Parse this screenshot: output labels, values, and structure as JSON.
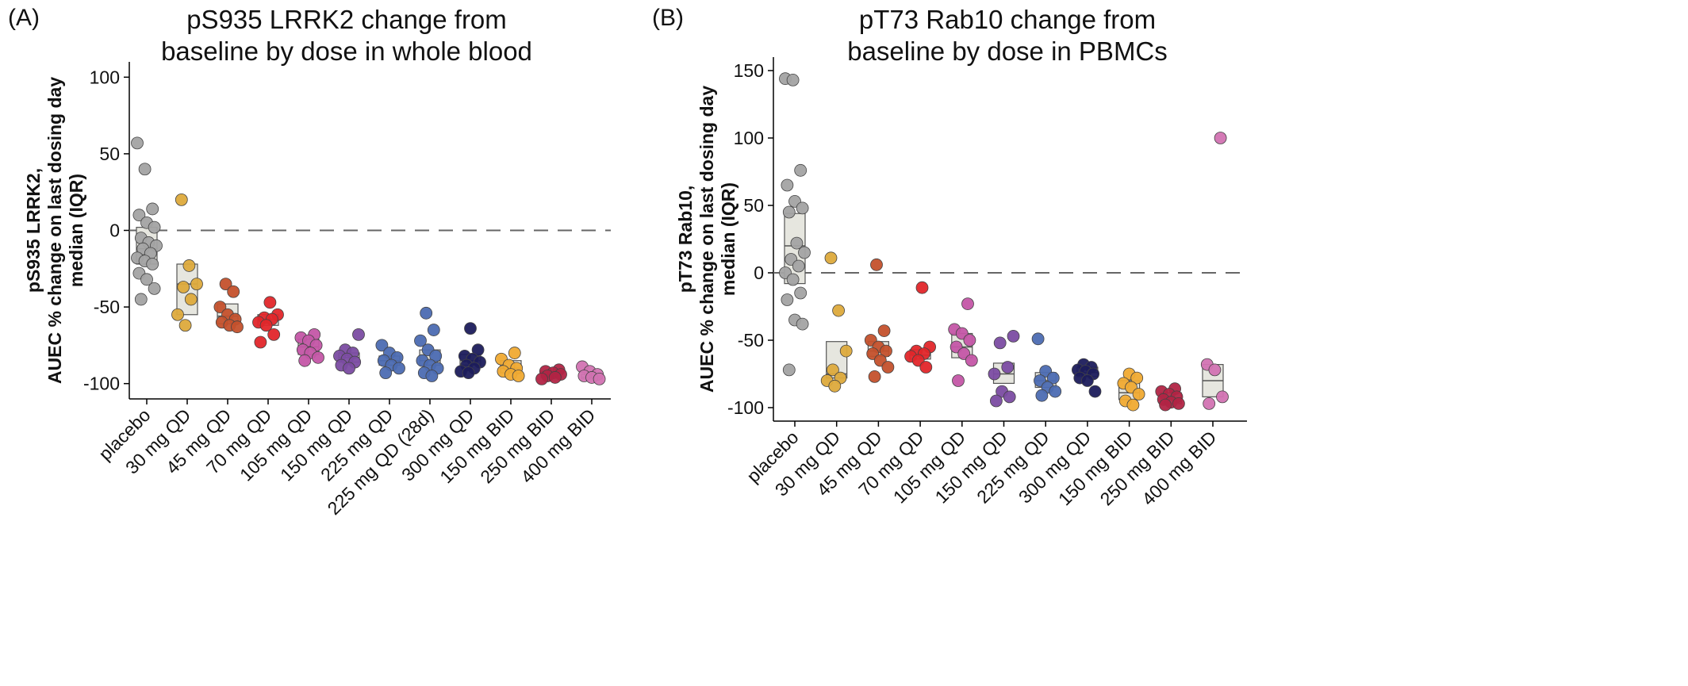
{
  "chart_data": [
    {
      "type": "box",
      "panel_label": "(A)",
      "title": [
        "pS935 LRRK2 change from",
        "baseline by dose in whole blood"
      ],
      "y_label": [
        "pS935 LRRK2,",
        "AUEC % change on last dosing day",
        "median (IQR)"
      ],
      "categories": [
        "placebo",
        "30 mg QD",
        "45 mg QD",
        "70 mg QD",
        "105 mg QD",
        "150 mg QD",
        "225 mg QD",
        "225 mg QD (28d)",
        "300 mg QD",
        "150 mg BID",
        "250 mg BID",
        "400 mg BID"
      ],
      "colors": [
        "#a3a3a3",
        "#ddaa3c",
        "#c4512c",
        "#e2262a",
        "#c456a6",
        "#7b4ca2",
        "#4c6cb2",
        "#4c6cb2",
        "#1c1c5c",
        "#f0aa32",
        "#b22444",
        "#d273b2"
      ],
      "points": [
        [
          57,
          40,
          14,
          10,
          5,
          2,
          -5,
          -8,
          -10,
          -12,
          -15,
          -18,
          -20,
          -22,
          -28,
          -32,
          -38,
          -45
        ],
        [
          20,
          -23,
          -35,
          -37,
          -45,
          -55,
          -62
        ],
        [
          -35,
          -40,
          -50,
          -55,
          -58,
          -60,
          -62,
          -63
        ],
        [
          -47,
          -55,
          -57,
          -58,
          -60,
          -62,
          -68,
          -73
        ],
        [
          -68,
          -70,
          -72,
          -75,
          -78,
          -80,
          -83,
          -85
        ],
        [
          -68,
          -78,
          -80,
          -82,
          -84,
          -86,
          -88,
          -90
        ],
        [
          -75,
          -80,
          -83,
          -85,
          -88,
          -90,
          -93
        ],
        [
          -54,
          -65,
          -72,
          -78,
          -82,
          -85,
          -88,
          -90,
          -93,
          -95
        ],
        [
          -64,
          -78,
          -82,
          -84,
          -86,
          -88,
          -90,
          -92,
          -93
        ],
        [
          -80,
          -84,
          -88,
          -90,
          -92,
          -94,
          -95
        ],
        [
          -91,
          -92,
          -93,
          -94,
          -95,
          -96,
          -97
        ],
        [
          -89,
          -92,
          -94,
          -95,
          -96,
          -97
        ]
      ],
      "q1": [
        -22,
        -55,
        -61,
        -62,
        -81,
        -86,
        -88,
        -88,
        -88,
        -93,
        -96,
        -97
      ],
      "median": [
        -12,
        -35,
        -56,
        -58,
        -76,
        -83,
        -85,
        -85,
        -85,
        -90,
        -94,
        -96
      ],
      "q3": [
        2,
        -22,
        -48,
        -55,
        -71,
        -80,
        -82,
        -78,
        -81,
        -85,
        -92,
        -94
      ],
      "hline": 0,
      "ylim": [
        -110,
        110
      ],
      "yticks": [
        -100,
        -50,
        0,
        50,
        100
      ]
    },
    {
      "type": "box",
      "panel_label": "(B)",
      "title": [
        "pT73 Rab10 change from",
        "baseline by dose in PBMCs"
      ],
      "y_label": [
        "pT73 Rab10,",
        "AUEC % change on last dosing day",
        "median (IQR)"
      ],
      "categories": [
        "placebo",
        "30 mg QD",
        "45 mg QD",
        "70 mg QD",
        "105 mg QD",
        "150 mg QD",
        "225 mg QD",
        "300 mg QD",
        "150 mg BID",
        "250 mg BID",
        "400 mg BID"
      ],
      "colors": [
        "#a3a3a3",
        "#ddaa3c",
        "#c4512c",
        "#e2262a",
        "#c456a6",
        "#7b4ca2",
        "#4c6cb2",
        "#1c1c5c",
        "#f0aa32",
        "#b22444",
        "#d273b2"
      ],
      "points": [
        [
          144,
          143,
          76,
          65,
          53,
          48,
          45,
          22,
          15,
          10,
          5,
          0,
          -5,
          -15,
          -20,
          -35,
          -38,
          -72
        ],
        [
          11,
          -28,
          -58,
          -72,
          -78,
          -80,
          -84
        ],
        [
          6,
          -43,
          -50,
          -55,
          -58,
          -60,
          -65,
          -70,
          -77
        ],
        [
          -11,
          -55,
          -58,
          -60,
          -62,
          -65,
          -70
        ],
        [
          -23,
          -42,
          -45,
          -50,
          -55,
          -60,
          -65,
          -80
        ],
        [
          -47,
          -52,
          -70,
          -75,
          -88,
          -92,
          -95
        ],
        [
          -49,
          -73,
          -78,
          -80,
          -85,
          -88,
          -91
        ],
        [
          -68,
          -70,
          -72,
          -73,
          -75,
          -78,
          -80,
          -88
        ],
        [
          -75,
          -78,
          -82,
          -85,
          -90,
          -95,
          -98
        ],
        [
          -86,
          -88,
          -90,
          -92,
          -94,
          -96,
          -97,
          -98
        ],
        [
          100,
          -68,
          -72,
          -92,
          -97
        ]
      ],
      "q1": [
        -8,
        -78,
        -62,
        -64,
        -63,
        -82,
        -85,
        -77,
        -94,
        -97,
        -92
      ],
      "median": [
        20,
        -75,
        -58,
        -61,
        -55,
        -75,
        -80,
        -74,
        -89,
        -93,
        -80
      ],
      "q3": [
        44,
        -51,
        -51,
        -57,
        -45,
        -67,
        -74,
        -70,
        -80,
        -89,
        -68
      ],
      "hline": 0,
      "ylim": [
        -110,
        160
      ],
      "yticks": [
        -100,
        -50,
        0,
        50,
        100,
        150
      ]
    }
  ]
}
